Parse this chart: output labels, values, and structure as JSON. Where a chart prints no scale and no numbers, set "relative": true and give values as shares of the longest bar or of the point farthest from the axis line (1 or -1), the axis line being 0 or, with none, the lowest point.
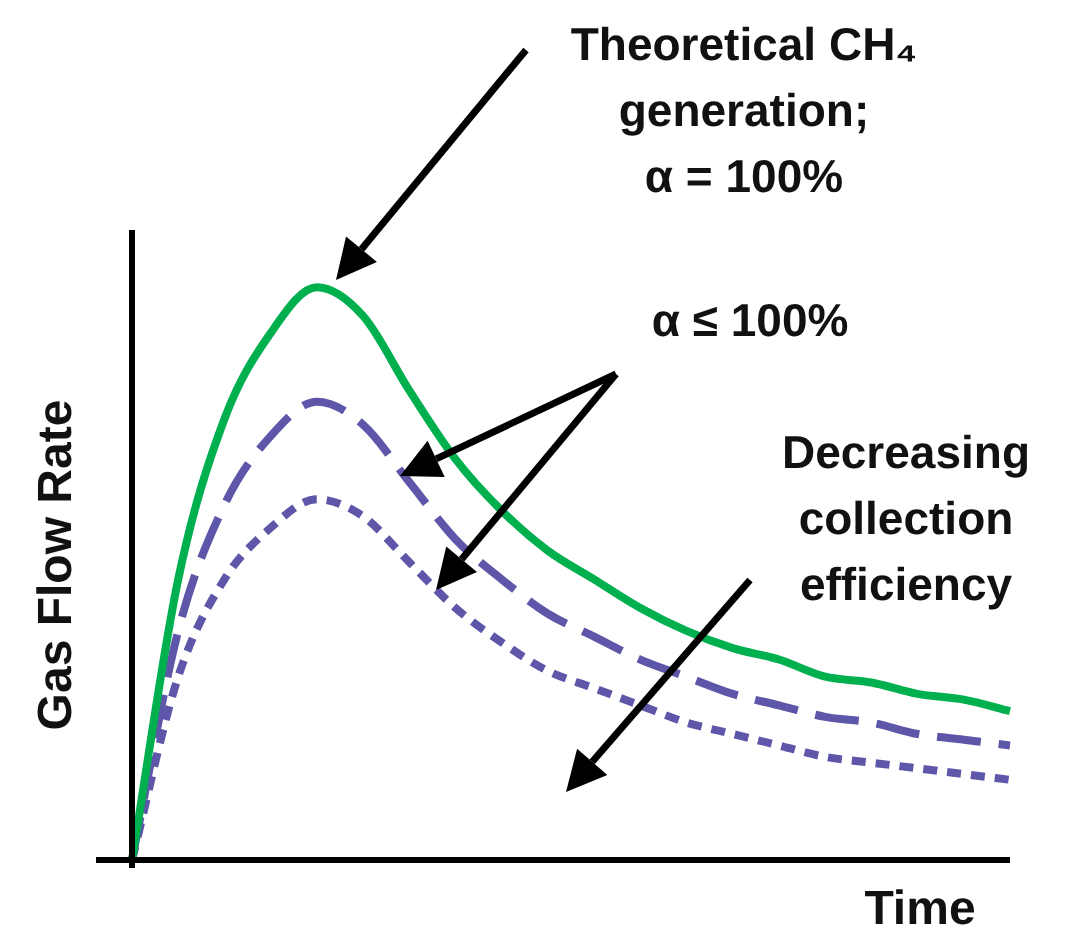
{
  "chart_data": {
    "type": "line",
    "relative": true,
    "xlabel": "Time",
    "ylabel": "Gas Flow Rate",
    "categories": [
      null,
      null,
      null,
      null,
      null,
      null,
      null,
      null,
      null,
      null,
      null,
      null,
      null,
      null,
      null,
      null,
      null,
      null,
      null,
      null
    ],
    "series": [
      {
        "color": "#00b04f",
        "line_style": "solid",
        "values": [
          0,
          0.49,
          0.77,
          0.92,
          1,
          0.95,
          0.82,
          0.7,
          0.61,
          0.54,
          0.49,
          0.44,
          0.4,
          0.37,
          0.35,
          0.32,
          0.31,
          0.29,
          0.28,
          0.26
        ]
      },
      {
        "color": "#5e56a8",
        "line_style": "dashed",
        "values": [
          0,
          0.4,
          0.62,
          0.74,
          0.8,
          0.76,
          0.66,
          0.56,
          0.49,
          0.43,
          0.39,
          0.35,
          0.32,
          0.29,
          0.27,
          0.25,
          0.24,
          0.22,
          0.21,
          0.2
        ]
      },
      {
        "color": "#5e56a8",
        "line_style": "dotted",
        "values": [
          0,
          0.32,
          0.49,
          0.58,
          0.63,
          0.6,
          0.52,
          0.44,
          0.38,
          0.33,
          0.3,
          0.27,
          0.24,
          0.22,
          0.2,
          0.18,
          0.17,
          0.16,
          0.15,
          0.14
        ]
      }
    ],
    "annotations": [
      "Theoretical CH₄ generation; α = 100%",
      "α ≤ 100%",
      "Decreasing collection efficiency"
    ],
    "marker": "none",
    "legend": false
  }
}
